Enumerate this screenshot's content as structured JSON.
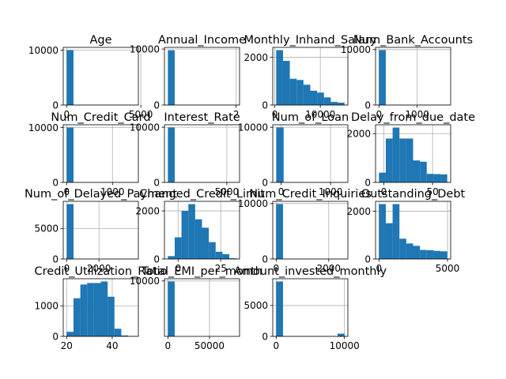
{
  "chart_data": [
    {
      "type": "bar",
      "title": "Age",
      "bars": [
        {
          "x0": 0,
          "x1": 460,
          "y": 10000
        }
      ],
      "xticks": [
        {
          "v": 0,
          "label": "0"
        },
        {
          "v": 5000,
          "label": "5000"
        }
      ],
      "yticks": [
        {
          "v": 0,
          "label": "0"
        },
        {
          "v": 10000,
          "label": "10000"
        }
      ],
      "xlim": [
        -230,
        4830
      ],
      "ylim": [
        0,
        10500
      ],
      "grid": true
    },
    {
      "type": "bar",
      "title": "Annual_Income",
      "bars": [
        {
          "x0": 0,
          "x1": 2400000,
          "y": 9800
        }
      ],
      "xticks": [
        {
          "v": 24000000,
          "label": "2"
        }
      ],
      "yticks": [
        {
          "v": 0,
          "label": "0"
        },
        {
          "v": 10000,
          "label": "10000"
        }
      ],
      "xlim": [
        -1200000,
        25200000
      ],
      "ylim": [
        0,
        10300
      ],
      "grid": true
    },
    {
      "type": "bar",
      "title": "Monthly_Inhand_Salary",
      "bars": [
        {
          "x0": 300,
          "x1": 1800,
          "y": 2300
        },
        {
          "x0": 1800,
          "x1": 3300,
          "y": 1850
        },
        {
          "x0": 3300,
          "x1": 4800,
          "y": 1100
        },
        {
          "x0": 4800,
          "x1": 6300,
          "y": 1050
        },
        {
          "x0": 6300,
          "x1": 7800,
          "y": 850
        },
        {
          "x0": 7800,
          "x1": 9300,
          "y": 600
        },
        {
          "x0": 9300,
          "x1": 10800,
          "y": 520
        },
        {
          "x0": 10800,
          "x1": 12300,
          "y": 320
        },
        {
          "x0": 12300,
          "x1": 13800,
          "y": 130
        },
        {
          "x0": 13800,
          "x1": 15300,
          "y": 100
        }
      ],
      "xticks": [
        {
          "v": 0,
          "label": "0"
        },
        {
          "v": 10000,
          "label": "10000"
        }
      ],
      "yticks": [
        {
          "v": 0,
          "label": "0"
        },
        {
          "v": 2000,
          "label": "2000"
        }
      ],
      "xlim": [
        -450,
        16050
      ],
      "ylim": [
        0,
        2415
      ],
      "grid": true
    },
    {
      "type": "bar",
      "title": "Num_Bank_Accounts",
      "bars": [
        {
          "x0": -1,
          "x1": 178,
          "y": 9900
        }
      ],
      "xticks": [
        {
          "v": 0,
          "label": "0"
        },
        {
          "v": 1000,
          "label": "1000"
        }
      ],
      "yticks": [
        {
          "v": 0,
          "label": "0"
        },
        {
          "v": 10000,
          "label": "10000"
        }
      ],
      "xlim": [
        -90,
        1877
      ],
      "ylim": [
        0,
        10400
      ],
      "grid": true
    },
    {
      "type": "bar",
      "title": "Num_Credit_Card",
      "bars": [
        {
          "x0": 0,
          "x1": 149,
          "y": 10000
        }
      ],
      "xticks": [
        {
          "v": 0,
          "label": "0"
        },
        {
          "v": 1000,
          "label": "1000"
        }
      ],
      "yticks": [
        {
          "v": 0,
          "label": "0"
        },
        {
          "v": 10000,
          "label": "10000"
        }
      ],
      "xlim": [
        -75,
        1565
      ],
      "ylim": [
        0,
        10500
      ],
      "grid": true
    },
    {
      "type": "bar",
      "title": "Interest_Rate",
      "bars": [
        {
          "x0": 1,
          "x1": 580,
          "y": 9950
        }
      ],
      "xticks": [
        {
          "v": 5000,
          "label": "5000"
        }
      ],
      "yticks": [
        {
          "v": 0,
          "label": "0"
        },
        {
          "v": 10000,
          "label": "10000"
        }
      ],
      "xlim": [
        -290,
        6080
      ],
      "ylim": [
        0,
        10450
      ],
      "grid": true
    },
    {
      "type": "bar",
      "title": "Num_of_Loan",
      "bars": [
        {
          "x0": -100,
          "x1": 50,
          "y": 9950
        }
      ],
      "xticks": [
        {
          "v": 0,
          "label": "0"
        },
        {
          "v": 1000,
          "label": "1000"
        }
      ],
      "yticks": [
        {
          "v": 0,
          "label": "0"
        },
        {
          "v": 10000,
          "label": "10000"
        }
      ],
      "xlim": [
        -170,
        1350
      ],
      "ylim": [
        0,
        10450
      ],
      "grid": true
    },
    {
      "type": "bar",
      "title": "Delay_from_due_date",
      "bars": [
        {
          "x0": -5,
          "x1": 2,
          "y": 400
        },
        {
          "x0": 2,
          "x1": 9,
          "y": 1800
        },
        {
          "x0": 9,
          "x1": 16,
          "y": 2250
        },
        {
          "x0": 16,
          "x1": 23,
          "y": 1800
        },
        {
          "x0": 23,
          "x1": 30,
          "y": 1800
        },
        {
          "x0": 30,
          "x1": 37,
          "y": 900
        },
        {
          "x0": 37,
          "x1": 44,
          "y": 850
        },
        {
          "x0": 44,
          "x1": 51,
          "y": 350
        },
        {
          "x0": 51,
          "x1": 58,
          "y": 340
        },
        {
          "x0": 58,
          "x1": 65,
          "y": 330
        }
      ],
      "xticks": [
        {
          "v": 0,
          "label": "0"
        },
        {
          "v": 50,
          "label": "50"
        }
      ],
      "yticks": [
        {
          "v": 0,
          "label": "0"
        },
        {
          "v": 2000,
          "label": "2000"
        }
      ],
      "xlim": [
        -8.5,
        68.5
      ],
      "ylim": [
        0,
        2365
      ],
      "grid": true
    },
    {
      "type": "bar",
      "title": "Num_of_Delayed_Payment",
      "bars": [
        {
          "x0": -3,
          "x1": 420,
          "y": 9000
        }
      ],
      "xticks": [
        {
          "v": 0,
          "label": "0"
        },
        {
          "v": 2000,
          "label": "2000"
        }
      ],
      "yticks": [
        {
          "v": 0,
          "label": "0"
        },
        {
          "v": 5000,
          "label": "5000"
        }
      ],
      "xlim": [
        -220,
        4450
      ],
      "ylim": [
        0,
        9450
      ],
      "grid": true
    },
    {
      "type": "bar",
      "title": "Changed_Credit_Limit",
      "bars": [
        {
          "x0": -6,
          "x1": -2,
          "y": 120
        },
        {
          "x0": -2,
          "x1": 2,
          "y": 900
        },
        {
          "x0": 2,
          "x1": 6,
          "y": 2000
        },
        {
          "x0": 6,
          "x1": 10,
          "y": 2280
        },
        {
          "x0": 10,
          "x1": 14,
          "y": 1650
        },
        {
          "x0": 14,
          "x1": 18,
          "y": 1300
        },
        {
          "x0": 18,
          "x1": 22,
          "y": 700
        },
        {
          "x0": 22,
          "x1": 26,
          "y": 300
        },
        {
          "x0": 26,
          "x1": 30,
          "y": 200
        },
        {
          "x0": 30,
          "x1": 34,
          "y": 30
        }
      ],
      "xticks": [
        {
          "v": 0,
          "label": "0"
        },
        {
          "v": 25,
          "label": "25"
        }
      ],
      "yticks": [
        {
          "v": 0,
          "label": "0"
        },
        {
          "v": 2000,
          "label": "2000"
        }
      ],
      "xlim": [
        -8,
        36
      ],
      "ylim": [
        0,
        2395
      ],
      "grid": true
    },
    {
      "type": "bar",
      "title": "Num_Credit_Inquiries",
      "bars": [
        {
          "x0": 0,
          "x1": 260,
          "y": 9900
        }
      ],
      "xticks": [
        {
          "v": 0,
          "label": "0"
        },
        {
          "v": 2000,
          "label": "2000"
        }
      ],
      "yticks": [
        {
          "v": 0,
          "label": "0"
        },
        {
          "v": 10000,
          "label": "10000"
        }
      ],
      "xlim": [
        -130,
        2730
      ],
      "ylim": [
        0,
        10400
      ],
      "grid": true
    },
    {
      "type": "bar",
      "title": "Outstanding_Debt",
      "bars": [
        {
          "x0": 0,
          "x1": 498,
          "y": 2300
        },
        {
          "x0": 498,
          "x1": 996,
          "y": 1500
        },
        {
          "x0": 996,
          "x1": 1494,
          "y": 2300
        },
        {
          "x0": 1494,
          "x1": 1992,
          "y": 850
        },
        {
          "x0": 1992,
          "x1": 2490,
          "y": 650
        },
        {
          "x0": 2490,
          "x1": 2988,
          "y": 550
        },
        {
          "x0": 2988,
          "x1": 3486,
          "y": 380
        },
        {
          "x0": 3486,
          "x1": 3984,
          "y": 370
        },
        {
          "x0": 3984,
          "x1": 4482,
          "y": 340
        },
        {
          "x0": 4482,
          "x1": 4980,
          "y": 320
        }
      ],
      "xticks": [
        {
          "v": 0,
          "label": "0"
        },
        {
          "v": 5000,
          "label": "5000"
        }
      ],
      "yticks": [
        {
          "v": 0,
          "label": "0"
        },
        {
          "v": 2000,
          "label": "2000"
        }
      ],
      "xlim": [
        -250,
        5230
      ],
      "ylim": [
        0,
        2415
      ],
      "grid": true
    },
    {
      "type": "bar",
      "title": "Credit_Utilization_Ratio",
      "bars": [
        {
          "x0": 20,
          "x1": 23,
          "y": 150
        },
        {
          "x0": 23,
          "x1": 26,
          "y": 1250
        },
        {
          "x0": 26,
          "x1": 29,
          "y": 1700
        },
        {
          "x0": 29,
          "x1": 32,
          "y": 1750
        },
        {
          "x0": 32,
          "x1": 35,
          "y": 1750
        },
        {
          "x0": 35,
          "x1": 38,
          "y": 1800
        },
        {
          "x0": 38,
          "x1": 41,
          "y": 1300
        },
        {
          "x0": 41,
          "x1": 44,
          "y": 250
        },
        {
          "x0": 44,
          "x1": 47,
          "y": 30
        },
        {
          "x0": 47,
          "x1": 50,
          "y": 5
        }
      ],
      "xticks": [
        {
          "v": 20,
          "label": "20"
        },
        {
          "v": 40,
          "label": "40"
        }
      ],
      "yticks": [
        {
          "v": 0,
          "label": "0"
        },
        {
          "v": 1000,
          "label": "1000"
        }
      ],
      "xlim": [
        18.5,
        51.5
      ],
      "ylim": [
        0,
        1890
      ],
      "grid": true
    },
    {
      "type": "bar",
      "title": "Total_EMI_per_month",
      "bars": [
        {
          "x0": 0,
          "x1": 8200,
          "y": 9900
        }
      ],
      "xticks": [
        {
          "v": 0,
          "label": "0"
        },
        {
          "v": 50000,
          "label": "50000"
        }
      ],
      "yticks": [
        {
          "v": 10000,
          "label": "10000"
        }
      ],
      "xlim": [
        -4100,
        86100
      ],
      "ylim": [
        0,
        10400
      ],
      "grid": true
    },
    {
      "type": "bar",
      "title": "Amount_invested_monthly",
      "bars": [
        {
          "x0": 0,
          "x1": 1000,
          "y": 8900
        },
        {
          "x0": 9000,
          "x1": 10000,
          "y": 450
        }
      ],
      "xticks": [
        {
          "v": 0,
          "label": "0"
        },
        {
          "v": 10000,
          "label": "10000"
        }
      ],
      "yticks": [
        {
          "v": 0,
          "label": "0"
        },
        {
          "v": 5000,
          "label": "5000"
        }
      ],
      "xlim": [
        -500,
        10500
      ],
      "ylim": [
        0,
        9345
      ],
      "grid": true
    }
  ],
  "style": {
    "bar_color": "#1f77b4",
    "grid_color": "#b0b0b0",
    "axis_color": "#000000"
  }
}
